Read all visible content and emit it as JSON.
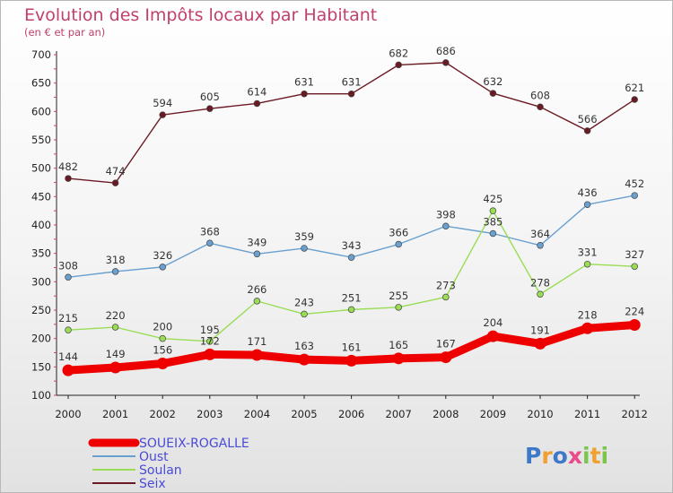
{
  "chart_data": {
    "type": "line",
    "title": "Evolution des Impôts locaux par Habitant",
    "subtitle": "(en € et par an)",
    "xlabel": "",
    "ylabel": "",
    "x": [
      "2000",
      "2001",
      "2002",
      "2003",
      "2004",
      "2005",
      "2006",
      "2007",
      "2008",
      "2009",
      "2010",
      "2011",
      "2012"
    ],
    "ylim": [
      100,
      700
    ],
    "yticks": [
      100,
      150,
      200,
      250,
      300,
      350,
      400,
      450,
      500,
      550,
      600,
      650,
      700
    ],
    "grid": false,
    "legend_position": "bottom-left",
    "series": [
      {
        "name": "Seix",
        "color": "#6b1a24",
        "values": [
          482,
          474,
          594,
          605,
          614,
          631,
          631,
          682,
          686,
          632,
          608,
          566,
          621
        ]
      },
      {
        "name": "Oust",
        "color": "#6aa0d0",
        "values": [
          308,
          318,
          326,
          368,
          349,
          359,
          343,
          366,
          398,
          385,
          364,
          436,
          452
        ]
      },
      {
        "name": "Soulan",
        "color": "#99dd55",
        "values": [
          215,
          220,
          200,
          195,
          266,
          243,
          251,
          255,
          273,
          425,
          278,
          331,
          327
        ]
      },
      {
        "name": "SOUEIX-ROGALLE",
        "color": "#ee0000",
        "values": [
          144,
          149,
          156,
          172,
          171,
          163,
          161,
          165,
          167,
          204,
          191,
          218,
          224
        ]
      }
    ]
  },
  "legend": [
    {
      "label": "SOUEIX-ROGALLE",
      "color": "#ee0000"
    },
    {
      "label": "Oust",
      "color": "#6aa0d0"
    },
    {
      "label": "Soulan",
      "color": "#99dd55"
    },
    {
      "label": "Seix",
      "color": "#6b1a24"
    }
  ],
  "logo": {
    "letters": [
      "P",
      "r",
      "o",
      "x",
      "i",
      "t",
      "i"
    ],
    "colors": [
      "#3d78c9",
      "#f0a030",
      "#3d78c9",
      "#e84a8a",
      "#7ac64a",
      "#f0a030",
      "#7ac64a"
    ]
  }
}
